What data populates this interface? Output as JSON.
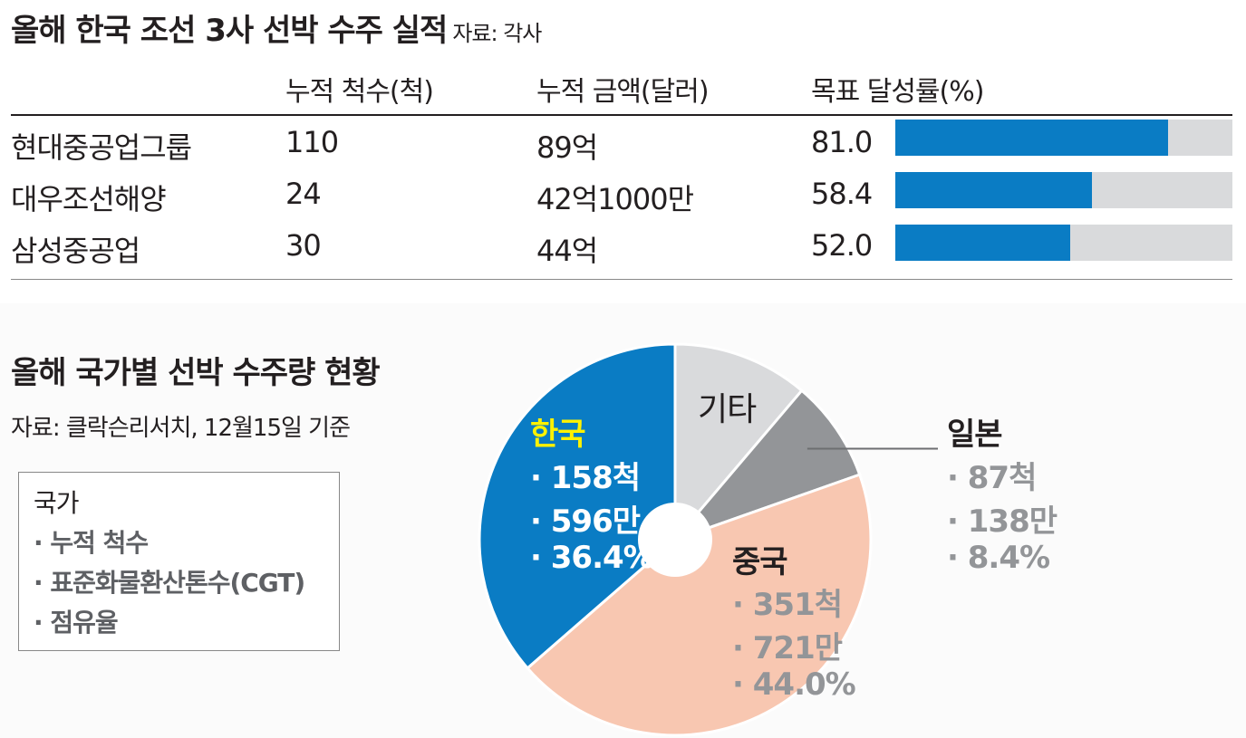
{
  "table": {
    "title": "올해 한국 조선 3사 선박 수주 실적",
    "source": "자료: 각사",
    "headers": [
      "누적 척수(척)",
      "누적 금액(달러)",
      "목표 달성률(%)"
    ],
    "rows": [
      {
        "company": "현대중공업그룹",
        "ships": "110",
        "amount": "89억",
        "rate": "81.0"
      },
      {
        "company": "대우조선해양",
        "ships": "24",
        "amount": "42억1000만",
        "rate": "58.4"
      },
      {
        "company": "삼성중공업",
        "ships": "30",
        "amount": "44억",
        "rate": "52.0"
      }
    ]
  },
  "pie_section": {
    "title": "올해 국가별 선박 수주량 현황",
    "source": "자료: 클락슨리서치, 12월15일 기준",
    "legend": {
      "title": "국가",
      "items": [
        "· 누적 척수",
        "· 표준화물환산톤수(CGT)",
        "· 점유율"
      ]
    }
  },
  "colors": {
    "korea": "#0a7cc4",
    "china": "#f8c7b1",
    "japan": "#939598",
    "other": "#d9dadc",
    "korea_label": "#fff200",
    "bar": "#0a7cc4",
    "bar_track": "#d9dadc"
  },
  "chart_data": [
    {
      "type": "bar",
      "orientation": "horizontal",
      "title": "목표 달성률(%)",
      "categories": [
        "현대중공업그룹",
        "대우조선해양",
        "삼성중공업"
      ],
      "values": [
        81.0,
        58.4,
        52.0
      ],
      "xlim": [
        0,
        100
      ]
    },
    {
      "type": "pie",
      "title": "올해 국가별 선박 수주량 현황",
      "slices": [
        {
          "name": "기타",
          "share": 11.2,
          "ships": null,
          "cgt": null,
          "share_label": null,
          "lines": []
        },
        {
          "name": "일본",
          "share": 8.4,
          "lines": [
            "· 87척",
            "· 138만",
            "· 8.4%"
          ]
        },
        {
          "name": "중국",
          "share": 44.0,
          "lines": [
            "· 351척",
            "· 721만",
            "· 44.0%"
          ]
        },
        {
          "name": "한국",
          "share": 36.4,
          "lines": [
            "· 158척",
            "· 596만",
            "· 36.4%"
          ]
        }
      ],
      "donut_hole": true
    }
  ]
}
